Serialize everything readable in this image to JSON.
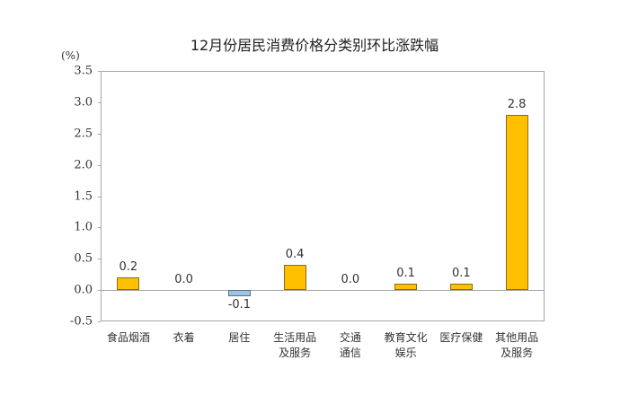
{
  "chart_data": {
    "type": "bar",
    "title": "12月份居民消费价格分类别环比涨跌幅",
    "xlabel": "",
    "ylabel": "(%)",
    "ylim": [
      -0.5,
      3.5
    ],
    "yticks": [
      "3.5",
      "3.0",
      "2.5",
      "2.0",
      "1.5",
      "1.0",
      "0.5",
      "0.0",
      "-0.5"
    ],
    "grid": false,
    "legend": null,
    "categories": [
      "食品烟酒",
      "衣着",
      "居住",
      "生活用品\n及服务",
      "交通\n通信",
      "教育文化\n娱乐",
      "医疗保健",
      "其他用品\n及服务"
    ],
    "values": [
      0.2,
      0.0,
      -0.1,
      0.4,
      0.0,
      0.1,
      0.1,
      2.8
    ],
    "value_labels": [
      "0.2",
      "0.0",
      "-0.1",
      "0.4",
      "0.0",
      "0.1",
      "0.1",
      "2.8"
    ],
    "colors": {
      "positive": "#ffc000",
      "negative": "#9dc3e6",
      "axis": "#a6a6a6"
    }
  }
}
